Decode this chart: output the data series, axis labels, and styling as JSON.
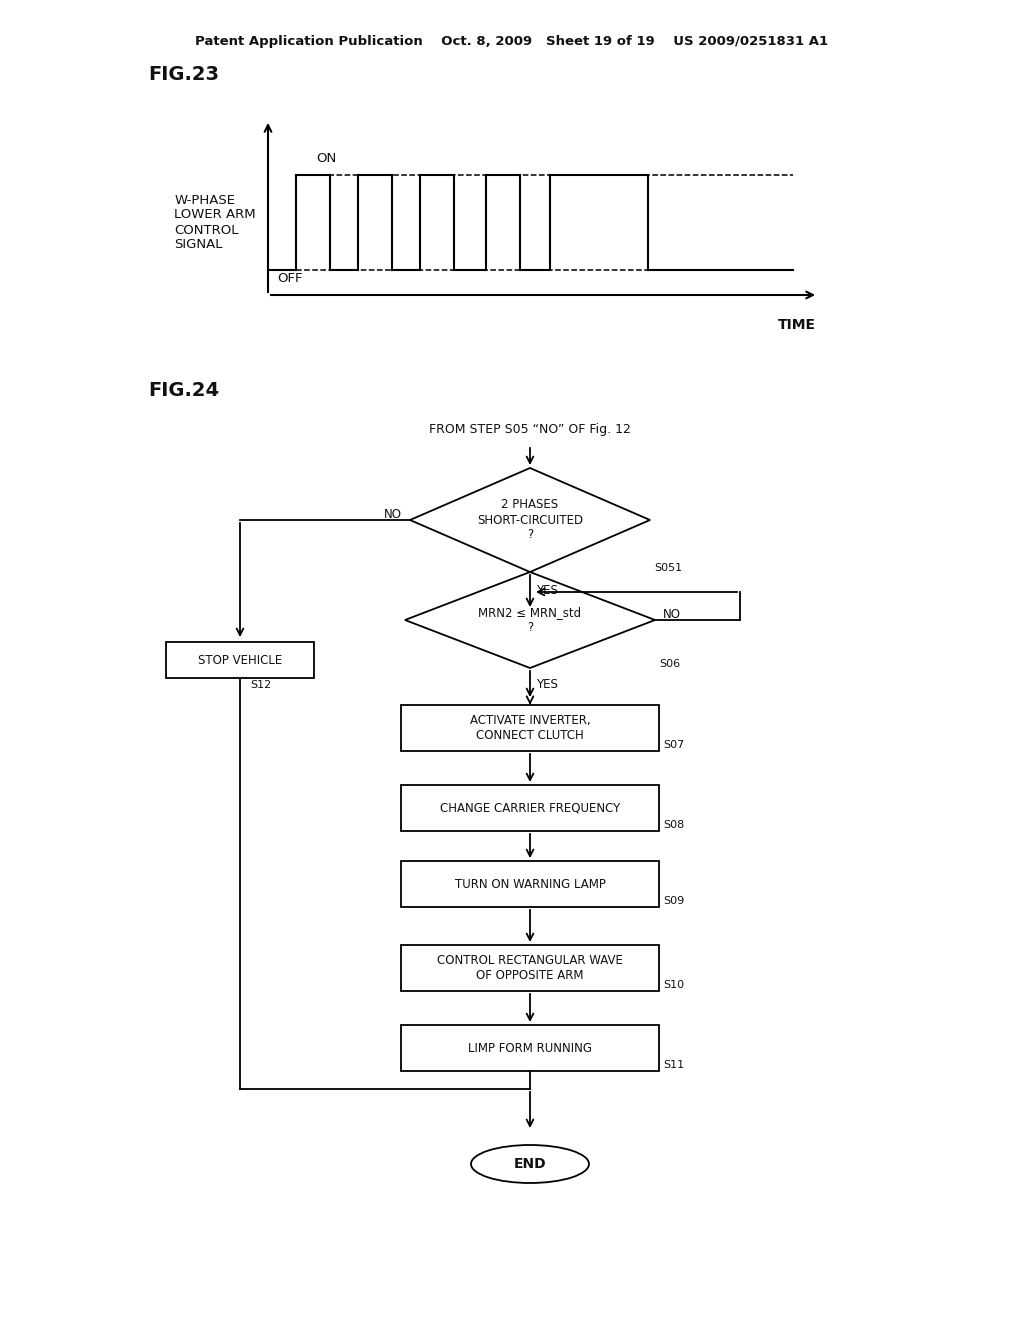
{
  "bg_color": "#ffffff",
  "header_text": "Patent Application Publication    Oct. 8, 2009   Sheet 19 of 19    US 2009/0251831 A1",
  "fig23_label": "FIG.23",
  "fig24_label": "FIG.24",
  "waveform_ylabel": "W-PHASE\nLOWER ARM\nCONTROL\nSIGNAL",
  "waveform_on": "ON",
  "waveform_off": "OFF",
  "waveform_xlabel": "TIME",
  "flowchart_start_text": "FROM STEP S05 “NO” OF Fig. 12",
  "diamond1_text": "2 PHASES\nSHORT-CIRCUITED\n?",
  "diamond1_label": "S051",
  "diamond1_no": "NO",
  "diamond1_yes": "YES",
  "diamond2_text": "MRN2 ≤ MRN_std\n?",
  "diamond2_label": "S06",
  "diamond2_no": "NO",
  "diamond2_yes": "YES",
  "box_stop": "STOP VEHICLE",
  "box_stop_label": "S12",
  "box1_text": "ACTIVATE INVERTER,\nCONNECT CLUTCH",
  "box1_label": "S07",
  "box2_text": "CHANGE CARRIER FREQUENCY",
  "box2_label": "S08",
  "box3_text": "TURN ON WARNING LAMP",
  "box3_label": "S09",
  "box4_text": "CONTROL RECTANGULAR WAVE\nOF OPPOSITE ARM",
  "box4_label": "S10",
  "box5_text": "LIMP FORM RUNNING",
  "box5_label": "S11",
  "end_text": "END"
}
